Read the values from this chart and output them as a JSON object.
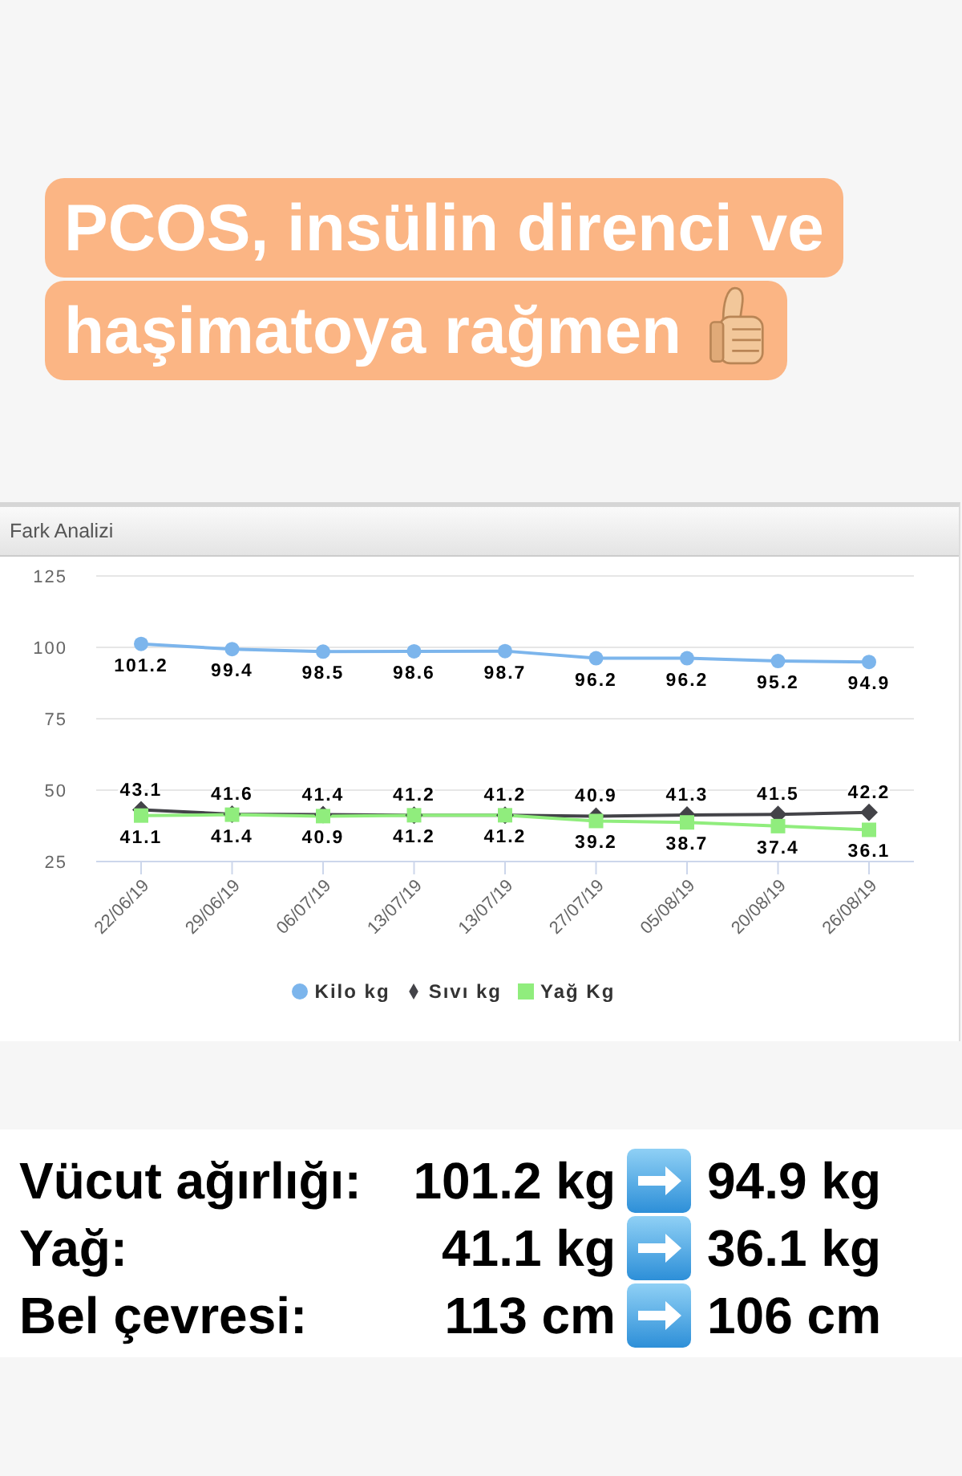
{
  "chart_data": {
    "type": "line",
    "title": "PCOS, insülin direnci ve haşimatoya rağmen",
    "subtitle": "Fark Analizi",
    "categories": [
      "22/06/19",
      "29/06/19",
      "06/07/19",
      "13/07/19",
      "13/07/19",
      "27/07/19",
      "05/08/19",
      "20/08/19",
      "26/08/19"
    ],
    "series": [
      {
        "name": "Kilo kg",
        "color": "#7cb5ec",
        "marker": "circle",
        "values": [
          101.2,
          99.4,
          98.5,
          98.6,
          98.7,
          96.2,
          96.2,
          95.2,
          94.9
        ]
      },
      {
        "name": "Sıvı kg",
        "color": "#434348",
        "marker": "diamond",
        "values": [
          43.1,
          41.6,
          41.4,
          41.2,
          41.2,
          40.9,
          41.3,
          41.5,
          42.2
        ]
      },
      {
        "name": "Yağ Kg",
        "color": "#90ed7d",
        "marker": "square",
        "values": [
          41.1,
          41.4,
          40.9,
          41.2,
          41.2,
          39.2,
          38.7,
          37.4,
          36.1
        ]
      }
    ],
    "ylim": [
      25,
      125
    ],
    "yticks": [
      25,
      50,
      75,
      100,
      125
    ],
    "grid": "y",
    "legend": "bottom",
    "data_labels": true,
    "line_style": "solid",
    "annotations": [
      "Vücut ağırlığı:",
      "101.2 kg",
      "94.9 kg",
      "Yağ:",
      "41.1 kg",
      "36.1 kg",
      "Bel çevresi:",
      "113 cm",
      "106 cm"
    ]
  }
}
